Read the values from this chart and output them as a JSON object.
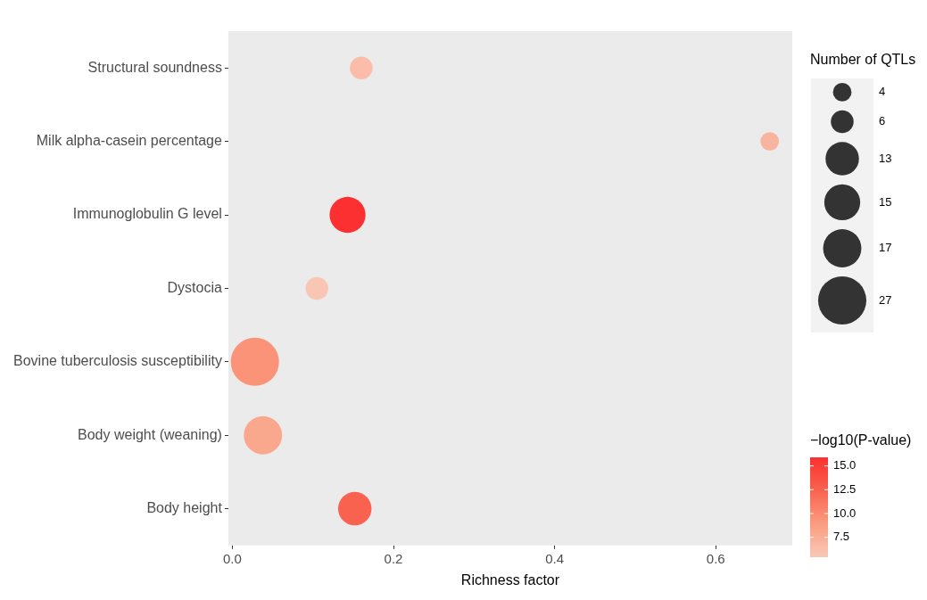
{
  "chart_data": {
    "type": "bubble",
    "orientation": "horizontal",
    "categories": [
      "Structural soundness",
      "Milk alpha-casein percentage",
      "Immunoglobulin G level",
      "Dystocia",
      "Bovine tuberculosis susceptibility",
      "Body weight (weaning)",
      "Body height"
    ],
    "values": [
      0.16,
      0.667,
      0.143,
      0.105,
      0.028,
      0.038,
      0.152
    ],
    "sizes": [
      6,
      4,
      15,
      6,
      27,
      17,
      13
    ],
    "cvalues": [
      6.5,
      7,
      15.9,
      5.5,
      9.5,
      8,
      12.5
    ],
    "colors": [
      "#fbbcaa",
      "#f9b49f",
      "#fc3030",
      "#f9c6b4",
      "#fb9378",
      "#faa88d",
      "#f8624f"
    ],
    "size_legend": [
      4,
      6,
      13,
      15,
      17,
      27
    ],
    "legend_title": "Number of QTLs",
    "clabel": "−log10(P-value)",
    "clim": [
      5.4,
      15.9
    ],
    "cticks": [
      {
        "value": 7.5,
        "label": "7.5"
      },
      {
        "value": 10,
        "label": "10.0"
      },
      {
        "value": 12.5,
        "label": "12.5"
      },
      {
        "value": 15,
        "label": "15.0"
      }
    ],
    "xlabel": "Richness factor",
    "xlim": [
      -0.005,
      0.695
    ],
    "xticks": [
      {
        "value": 0,
        "label": "0.0"
      },
      {
        "value": 0.2,
        "label": "0.2"
      },
      {
        "value": 0.4,
        "label": "0.4"
      },
      {
        "value": 0.6,
        "label": "0.6"
      }
    ]
  }
}
